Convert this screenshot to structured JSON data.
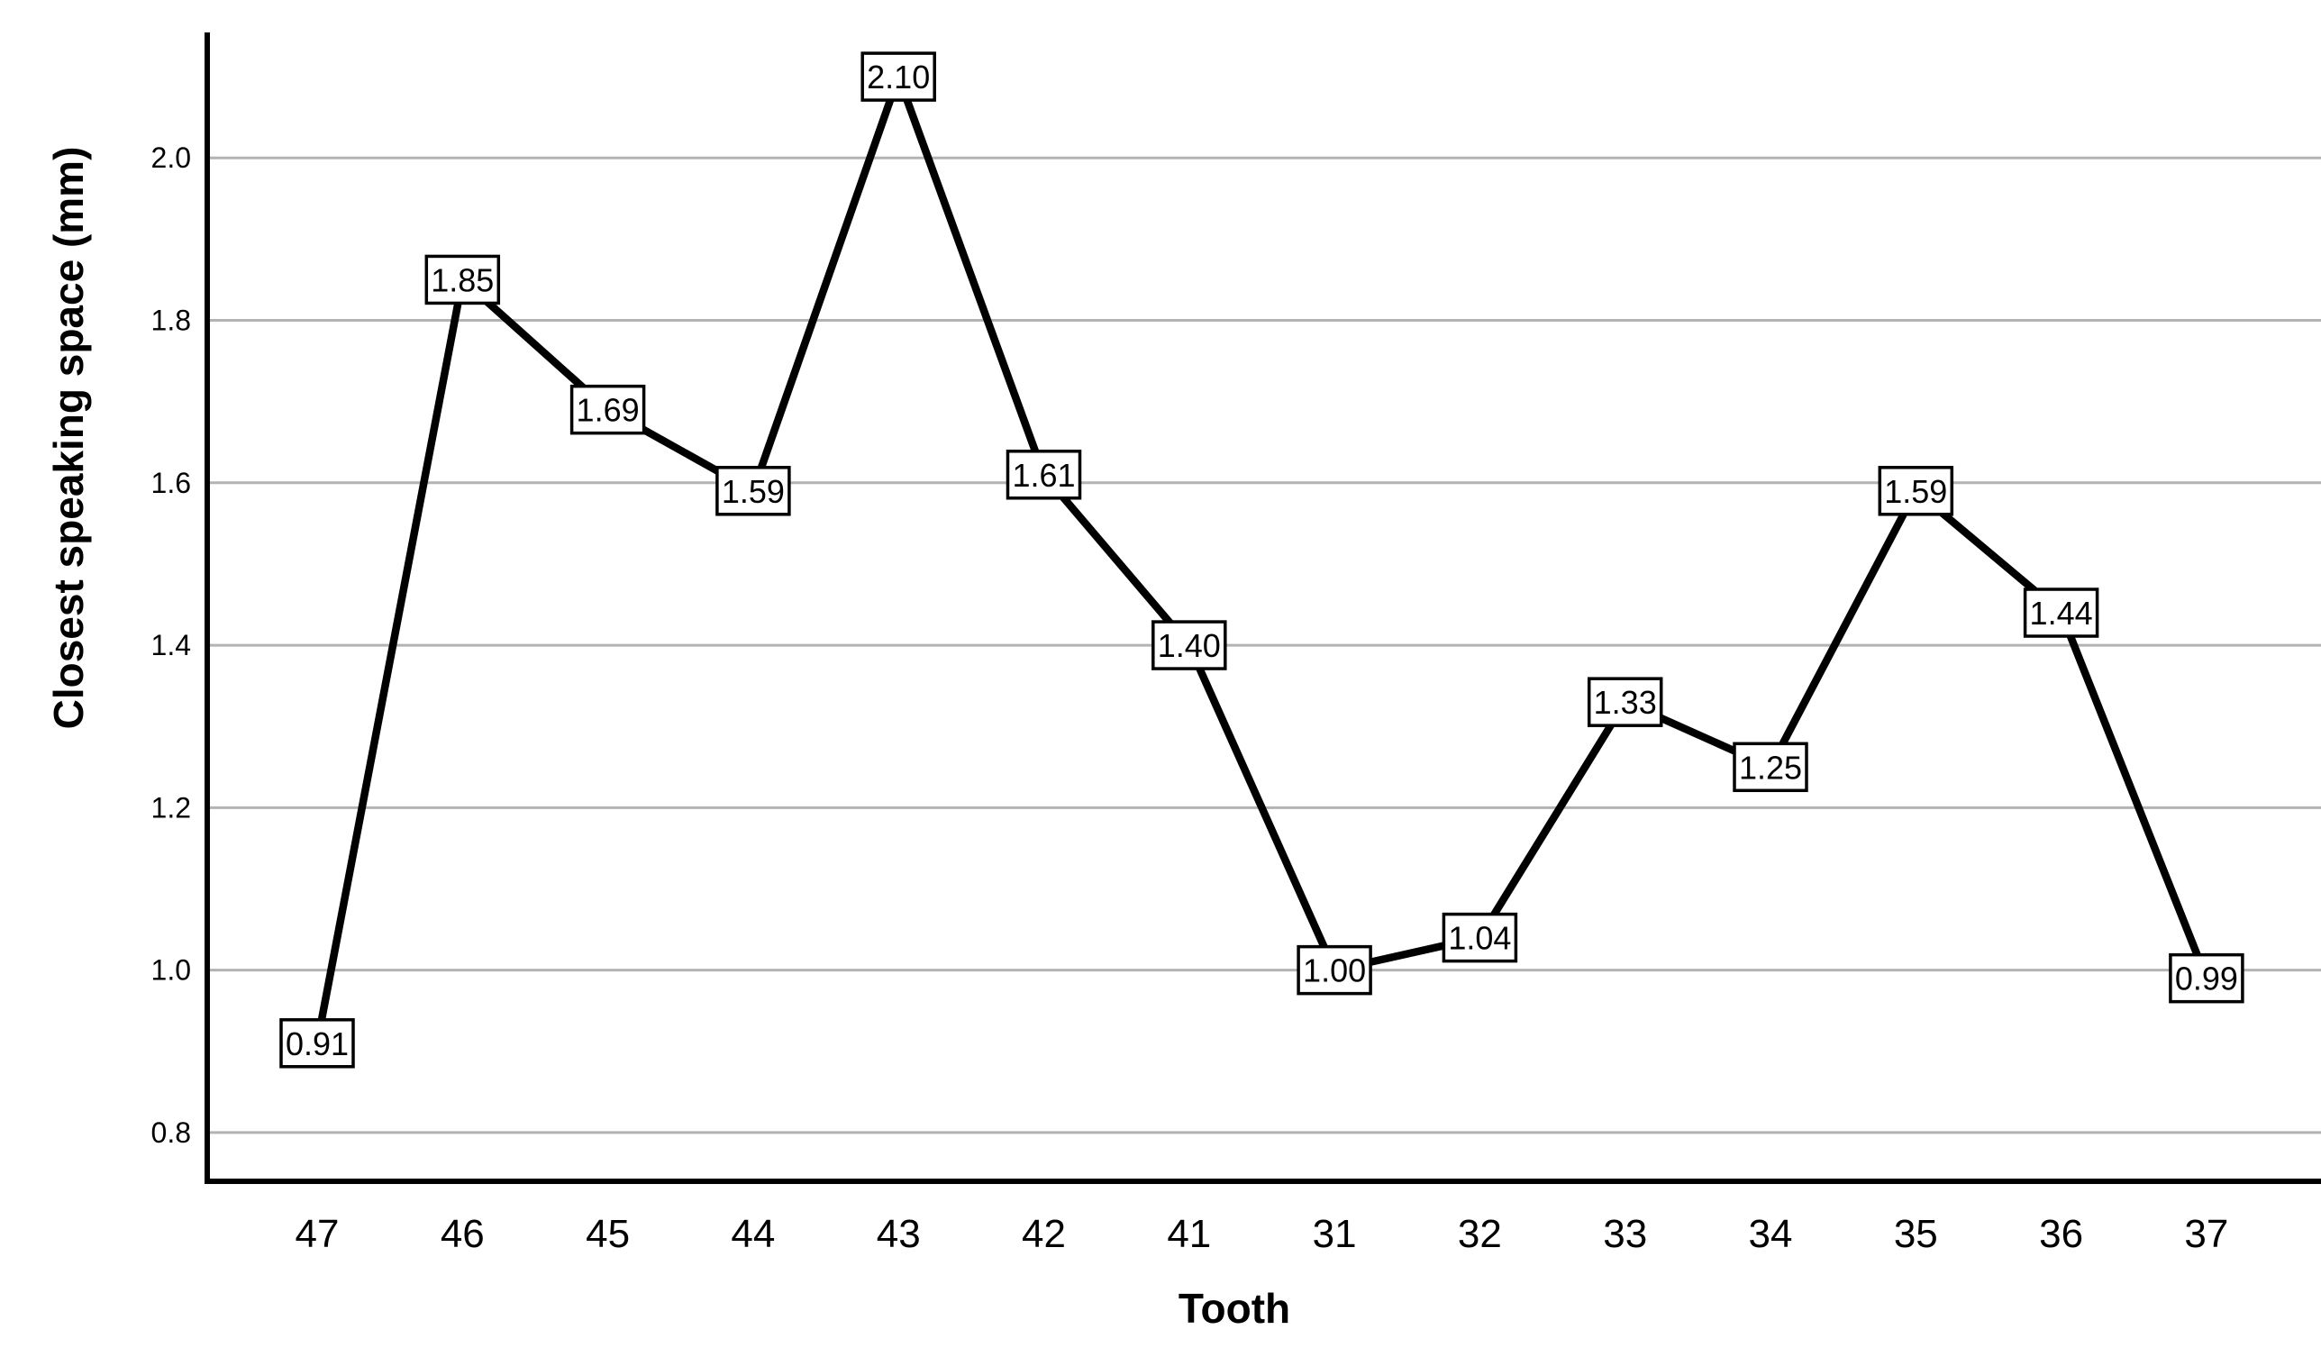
{
  "figure": {
    "background": "#ffffff"
  },
  "chart_data": {
    "type": "line",
    "title": "",
    "xlabel": "Tooth",
    "ylabel": "Closest speaking space (mm)",
    "categories": [
      "47",
      "46",
      "45",
      "44",
      "43",
      "42",
      "41",
      "31",
      "32",
      "33",
      "34",
      "35",
      "36",
      "37"
    ],
    "values": [
      0.91,
      1.85,
      1.69,
      1.59,
      2.1,
      1.61,
      1.4,
      1.0,
      1.04,
      1.33,
      1.25,
      1.59,
      1.44,
      0.99
    ],
    "point_labels": [
      "0.91",
      "1.85",
      "1.69",
      "1.59",
      "2.10",
      "1.61",
      "1.40",
      "1.00",
      "1.04",
      "1.33",
      "1.25",
      "1.59",
      "1.44",
      "0.99"
    ],
    "y_ticks": [
      "0.8",
      "1.0",
      "1.2",
      "1.4",
      "1.6",
      "1.8",
      "2.0"
    ],
    "y_tick_values": [
      0.8,
      1.0,
      1.2,
      1.4,
      1.6,
      1.8,
      2.0
    ],
    "ylim": [
      0.74,
      2.16
    ],
    "grid": "horizontal",
    "legend": "none",
    "colors": {
      "line": "#000000",
      "grid": "#b3b3b3",
      "axis": "#000000",
      "text": "#000000",
      "label_box_fill": "#ffffff",
      "label_box_border": "#000000"
    }
  }
}
